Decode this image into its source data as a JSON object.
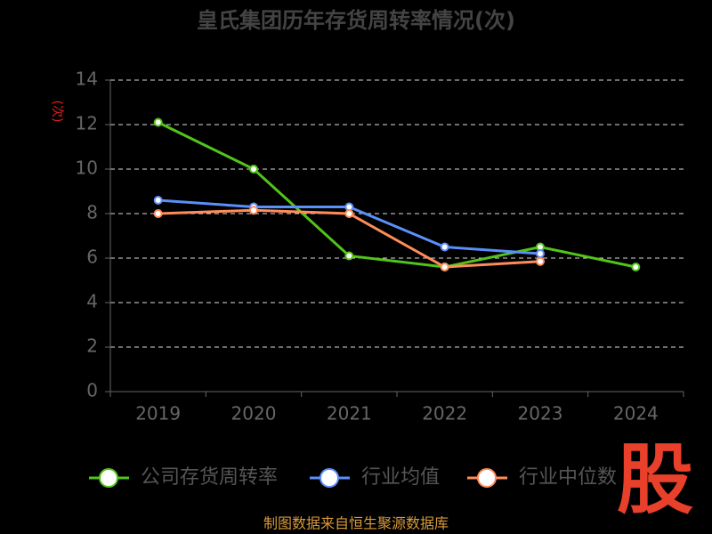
{
  "chart_data": {
    "type": "line",
    "title": "皇氏集团历年存货周转率情况(次)",
    "y_label": "(次)",
    "categories": [
      "2019",
      "2020",
      "2021",
      "2022",
      "2023",
      "2024"
    ],
    "series": [
      {
        "name": "公司存货周转率",
        "color": "#52c41a",
        "values": [
          12.1,
          10.0,
          6.1,
          5.6,
          6.5,
          5.6
        ]
      },
      {
        "name": "行业均值",
        "color": "#5b8ff9",
        "values": [
          8.6,
          8.3,
          8.3,
          6.5,
          6.2,
          null
        ]
      },
      {
        "name": "行业中位数",
        "color": "#ff8c5a",
        "values": [
          8.0,
          8.15,
          8.0,
          5.6,
          5.85,
          null
        ]
      }
    ],
    "ylim": [
      0,
      14
    ],
    "yticks": [
      0,
      2,
      4,
      6,
      8,
      10,
      12,
      14
    ],
    "grid": true
  },
  "source": "制图数据来自恒生聚源数据库",
  "logo": "股"
}
